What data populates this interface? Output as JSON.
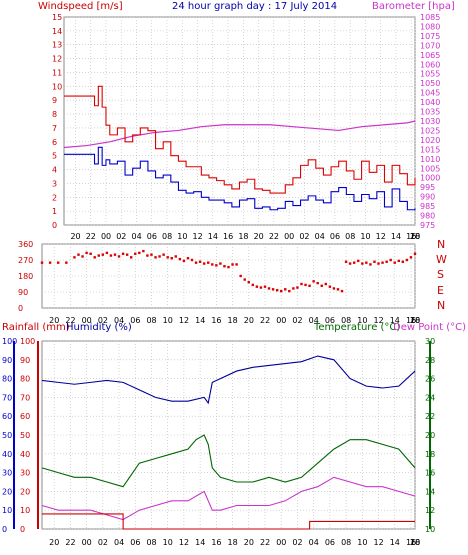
{
  "title": "24 hour graph day : 17 July 2014",
  "colors": {
    "wind_avg": "#0000cc",
    "wind_gust": "#dd0000",
    "barometer": "#cc33cc",
    "direction": "#dd0000",
    "rainfall": "#cc0000",
    "humidity": "#000099",
    "temperature": "#006600",
    "dewpoint": "#cc33cc",
    "axis_left_blue": "#0000cc",
    "axis_left_red": "#cc0000",
    "axis_right_green": "#006600",
    "axis_right_magenta": "#cc33cc",
    "grid": "#bbbbbb"
  },
  "x_tick_labels": [
    "20",
    "22",
    "00",
    "02",
    "04",
    "06",
    "08",
    "10",
    "12",
    "14",
    "16",
    "18",
    "20",
    "22",
    "00",
    "02",
    "04",
    "06",
    "08",
    "10",
    "12",
    "14",
    "16",
    "18",
    "20"
  ],
  "labels": {
    "windspeed": "Windspeed [m/s]",
    "barometer": "Barometer [hpa]",
    "rainfall": "Rainfall (mm)",
    "humidity": "Humidity (%)",
    "temperature": "Temperature (°C)",
    "dewpoint": "Dew Point (°C)"
  },
  "directions": [
    "N",
    "W",
    "S",
    "E",
    "N"
  ],
  "chart_data": [
    {
      "type": "line",
      "title": "24 hour graph day : 17 July 2014",
      "xlabel": "",
      "ylabel": "Windspeed [m/s]",
      "y2label": "Barometer [hpa]",
      "ylim": [
        0,
        15
      ],
      "y2lim": [
        975,
        1085
      ],
      "yticks": [
        0,
        1,
        2,
        3,
        4,
        5,
        6,
        7,
        8,
        9,
        10,
        11,
        12,
        13,
        14,
        15
      ],
      "y2ticks": [
        975,
        980,
        985,
        990,
        995,
        1000,
        1005,
        1010,
        1015,
        1020,
        1025,
        1030,
        1035,
        1040,
        1045,
        1050,
        1055,
        1060,
        1065,
        1070,
        1075,
        1080,
        1085
      ],
      "x_hours_since_start": [
        0,
        1.5,
        2,
        2.5,
        3,
        3.5,
        4,
        5,
        6,
        7,
        8,
        9,
        10,
        11,
        12,
        13,
        14,
        15,
        16,
        17,
        18,
        19,
        20,
        21,
        22,
        23,
        24,
        25,
        26,
        27,
        28,
        29,
        30,
        31,
        32,
        33,
        34,
        35,
        36,
        37,
        38,
        39,
        40,
        41,
        42,
        43,
        44,
        45,
        46
      ],
      "series": [
        {
          "name": "Barometer",
          "axis": "right",
          "x": [
            0,
            3,
            6,
            9,
            12,
            15,
            18,
            21,
            24,
            27,
            30,
            33,
            36,
            39,
            42,
            45,
            46
          ],
          "values": [
            1016,
            1017,
            1019,
            1022,
            1024,
            1025,
            1027,
            1028,
            1028,
            1028,
            1027,
            1026,
            1025,
            1027,
            1028,
            1029,
            1030
          ]
        },
        {
          "name": "Wind gust",
          "axis": "left",
          "x": [
            0,
            3.5,
            4,
            4.5,
            5,
            5.5,
            6,
            7,
            8,
            9,
            10,
            11,
            12,
            13,
            14,
            15,
            16,
            17,
            18,
            19,
            20,
            21,
            22,
            23,
            24,
            25,
            26,
            27,
            28,
            29,
            30,
            31,
            32,
            33,
            34,
            35,
            36,
            37,
            38,
            39,
            40,
            41,
            42,
            43,
            44,
            45,
            46
          ],
          "values": [
            9.3,
            9.3,
            8.6,
            10,
            8.5,
            7.2,
            6.5,
            7,
            6,
            6.5,
            7,
            6.8,
            5.5,
            6,
            5,
            4.6,
            4.2,
            4.2,
            3.6,
            3.4,
            3.2,
            2.9,
            2.6,
            3.1,
            3.3,
            2.6,
            2.5,
            2.3,
            2.3,
            2.9,
            3.4,
            4.3,
            4.7,
            4.1,
            3.6,
            4.2,
            4.6,
            3.9,
            3.3,
            4.6,
            3.8,
            4.3,
            3.1,
            4.3,
            3.7,
            2.9,
            3.4
          ]
        },
        {
          "name": "Wind average",
          "axis": "left",
          "x": [
            0,
            3.5,
            4,
            4.5,
            5,
            5.5,
            6,
            7,
            8,
            9,
            10,
            11,
            12,
            13,
            14,
            15,
            16,
            17,
            18,
            19,
            20,
            21,
            22,
            23,
            24,
            25,
            26,
            27,
            28,
            29,
            30,
            31,
            32,
            33,
            34,
            35,
            36,
            37,
            38,
            39,
            40,
            41,
            42,
            43,
            44,
            45,
            46
          ],
          "values": [
            5.1,
            5.1,
            4.4,
            5.6,
            4.3,
            4.7,
            4.4,
            4.6,
            3.6,
            4.1,
            4.6,
            3.9,
            3.4,
            3.6,
            3.1,
            2.5,
            2.3,
            2.4,
            2,
            1.8,
            1.8,
            1.6,
            1.3,
            1.8,
            1.9,
            1.2,
            1.3,
            1.1,
            1.2,
            1.7,
            1.4,
            1.8,
            2.1,
            1.8,
            1.6,
            2.4,
            2.7,
            2.2,
            1.7,
            2.2,
            1.9,
            2.4,
            1.3,
            2.6,
            1.7,
            1.1,
            1.2
          ]
        }
      ]
    },
    {
      "type": "scatter",
      "ylabel": "Wind direction",
      "ylim": [
        0,
        360
      ],
      "yticks": [
        0,
        90,
        180,
        270,
        360
      ],
      "series": [
        {
          "name": "Direction",
          "x": [
            0,
            1,
            2,
            3,
            4,
            4.5,
            5,
            5.5,
            6,
            6.5,
            7,
            7.5,
            8,
            8.5,
            9,
            9.5,
            10,
            10.5,
            11,
            11.5,
            12,
            12.5,
            13,
            13.5,
            14,
            14.5,
            15,
            15.5,
            16,
            16.5,
            17,
            17.5,
            18,
            18.5,
            19,
            19.5,
            20,
            20.5,
            21,
            21.5,
            22,
            22.5,
            23,
            23.5,
            24,
            24.5,
            25,
            25.5,
            26,
            26.5,
            27,
            27.5,
            28,
            28.5,
            29,
            29.5,
            30,
            30.5,
            31,
            31.5,
            32,
            32.5,
            33,
            33.5,
            34,
            34.5,
            35,
            35.5,
            36,
            36.5,
            37,
            37.5,
            38,
            38.5,
            39,
            39.5,
            40,
            40.5,
            41,
            41.5,
            42,
            42.5,
            43,
            43.5,
            44,
            44.5,
            45,
            45.5,
            46
          ],
          "values": [
            255,
            255,
            255,
            255,
            285,
            300,
            290,
            310,
            305,
            285,
            295,
            300,
            310,
            295,
            300,
            290,
            305,
            300,
            285,
            305,
            310,
            320,
            295,
            300,
            285,
            290,
            300,
            285,
            280,
            290,
            275,
            265,
            280,
            270,
            255,
            260,
            250,
            255,
            245,
            240,
            250,
            235,
            230,
            245,
            245,
            180,
            160,
            145,
            130,
            120,
            115,
            120,
            110,
            105,
            100,
            95,
            105,
            95,
            110,
            115,
            135,
            130,
            125,
            150,
            140,
            125,
            135,
            120,
            110,
            105,
            95,
            260,
            250,
            255,
            265,
            250,
            255,
            245,
            260,
            250,
            255,
            260,
            270,
            255,
            265,
            260,
            270,
            285,
            305
          ]
        }
      ]
    },
    {
      "type": "line",
      "ylabel": "Rainfall (mm) / Humidity (%)",
      "y2label": "Temperature (°C) / Dew Point (°C)",
      "ylim": [
        0,
        100
      ],
      "y2lim": [
        10,
        30
      ],
      "yticks": [
        0,
        10,
        20,
        30,
        40,
        50,
        60,
        70,
        80,
        90,
        100
      ],
      "y2ticks": [
        10,
        12,
        14,
        16,
        18,
        20,
        22,
        24,
        26,
        28,
        30
      ],
      "series": [
        {
          "name": "Humidity",
          "axis": "left",
          "x": [
            0,
            2,
            4,
            6,
            8,
            10,
            12,
            14,
            16,
            18,
            20,
            20.5,
            21,
            22,
            24,
            26,
            28,
            30,
            32,
            34,
            36,
            38,
            40,
            42,
            44,
            46
          ],
          "values": [
            79,
            78,
            77,
            78,
            79,
            78,
            74,
            70,
            68,
            68,
            70,
            67,
            78,
            80,
            84,
            86,
            87,
            88,
            89,
            92,
            90,
            80,
            76,
            75,
            76,
            84
          ]
        },
        {
          "name": "Temperature",
          "axis": "right",
          "x": [
            0,
            2,
            4,
            6,
            8,
            10,
            12,
            14,
            16,
            18,
            19,
            20,
            20.5,
            21,
            22,
            24,
            26,
            28,
            30,
            32,
            34,
            36,
            38,
            40,
            42,
            44,
            46
          ],
          "values": [
            16.5,
            16,
            15.5,
            15.5,
            15,
            14.5,
            17,
            17.5,
            18,
            18.5,
            19.5,
            20,
            19,
            16.5,
            15.5,
            15,
            15,
            15.5,
            15,
            15.5,
            17,
            18.5,
            19.5,
            19.5,
            19,
            18.5,
            16.5
          ]
        },
        {
          "name": "Dew Point",
          "axis": "right",
          "x": [
            0,
            2,
            4,
            6,
            8,
            10,
            12,
            14,
            16,
            18,
            20,
            20.5,
            21,
            22,
            24,
            26,
            28,
            30,
            32,
            34,
            36,
            38,
            40,
            42,
            44,
            46
          ],
          "values": [
            12.5,
            12,
            12,
            12,
            11.5,
            11,
            12,
            12.5,
            13,
            13,
            14,
            13,
            12,
            12,
            12.5,
            12.5,
            12.5,
            13,
            14,
            14.5,
            15.5,
            15,
            14.5,
            14.5,
            14,
            13.5
          ]
        },
        {
          "name": "Rainfall",
          "axis": "left",
          "x": [
            0,
            10,
            10.01,
            33,
            33.01,
            46
          ],
          "values": [
            8,
            8,
            0,
            0,
            4,
            4
          ]
        }
      ]
    }
  ]
}
